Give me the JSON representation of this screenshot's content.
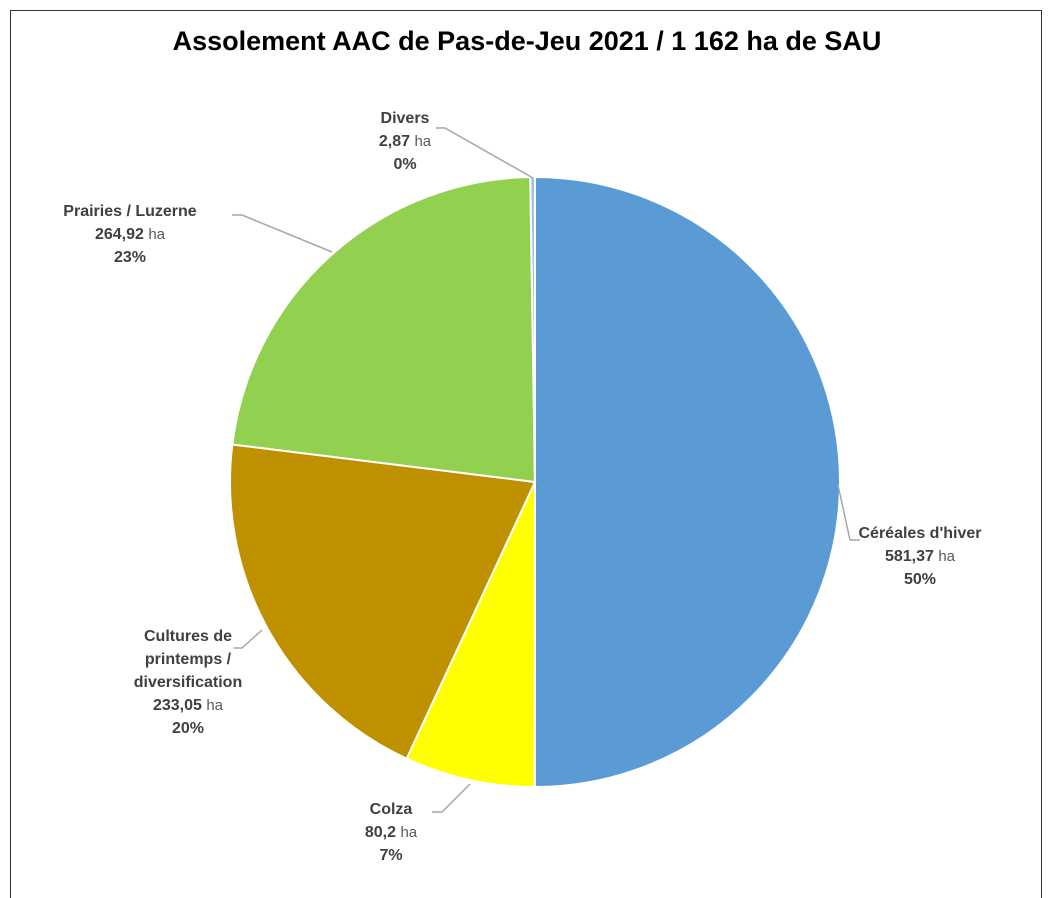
{
  "chart_data": {
    "type": "pie",
    "title": "Assolement AAC de Pas-de-Jeu 2021 / 1 162 ha de SAU",
    "categories": [
      "Céréales d'hiver",
      "Colza",
      "Cultures de printemps / diversification",
      "Prairies / Luzerne",
      "Divers"
    ],
    "values": [
      581.37,
      80.2,
      233.05,
      264.92,
      2.87
    ],
    "value_labels": [
      "581,37",
      "80,2",
      "233,05",
      "264,92",
      "2,87"
    ],
    "unit": "ha",
    "percentages": [
      50,
      7,
      20,
      23,
      0
    ],
    "percentage_labels": [
      "50%",
      "7%",
      "20%",
      "23%",
      "0%"
    ],
    "colors": [
      "#5b9bd5",
      "#ffff00",
      "#bf9000",
      "#92d050",
      "#9dc3e6"
    ]
  }
}
